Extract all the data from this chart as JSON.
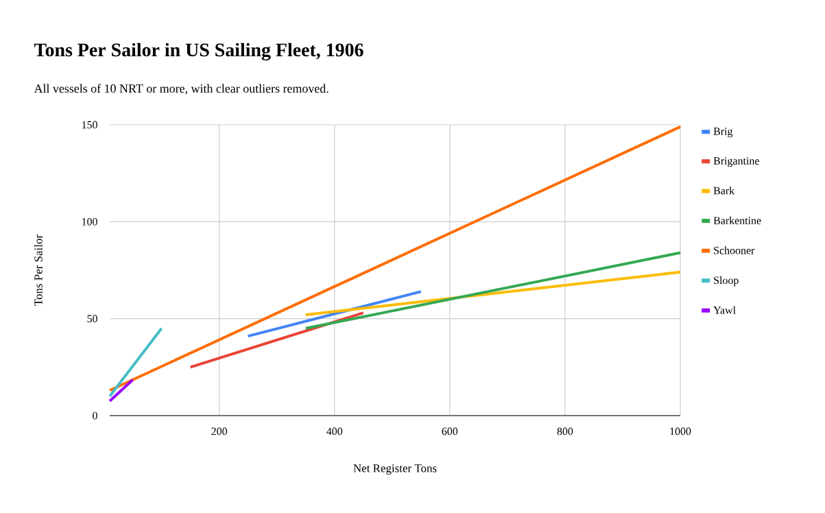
{
  "chart_data": {
    "type": "line",
    "title": "Tons Per Sailor in US Sailing Fleet, 1906",
    "subtitle": "All vessels of 10 NRT or more, with clear outliers removed.",
    "xlabel": "Net Register Tons",
    "ylabel": "Tons Per Sailor",
    "xlim": [
      10,
      1000
    ],
    "ylim": [
      0,
      150
    ],
    "xticks": [
      200,
      400,
      600,
      800,
      1000
    ],
    "yticks": [
      0,
      50,
      100,
      150
    ],
    "grid": true,
    "legend": "right",
    "marker": "none",
    "line_style": "solid",
    "series": [
      {
        "name": "Brig",
        "color": "#4285f4",
        "x": [
          250,
          550
        ],
        "values": [
          41,
          64
        ]
      },
      {
        "name": "Brigantine",
        "color": "#ea4335",
        "x": [
          150,
          450
        ],
        "values": [
          25,
          53
        ]
      },
      {
        "name": "Bark",
        "color": "#fbbc04",
        "x": [
          350,
          1000
        ],
        "values": [
          52,
          74
        ]
      },
      {
        "name": "Barkentine",
        "color": "#34a853",
        "x": [
          350,
          1000
        ],
        "values": [
          45,
          84
        ]
      },
      {
        "name": "Schooner",
        "color": "#ff6d01",
        "x": [
          10,
          1000
        ],
        "values": [
          13,
          149
        ]
      },
      {
        "name": "Sloop",
        "color": "#46bdc6",
        "x": [
          10,
          100
        ],
        "values": [
          10,
          45
        ]
      },
      {
        "name": "Yawl",
        "color": "#9900ff",
        "x": [
          10,
          50
        ],
        "values": [
          7.5,
          18.5
        ]
      }
    ]
  }
}
